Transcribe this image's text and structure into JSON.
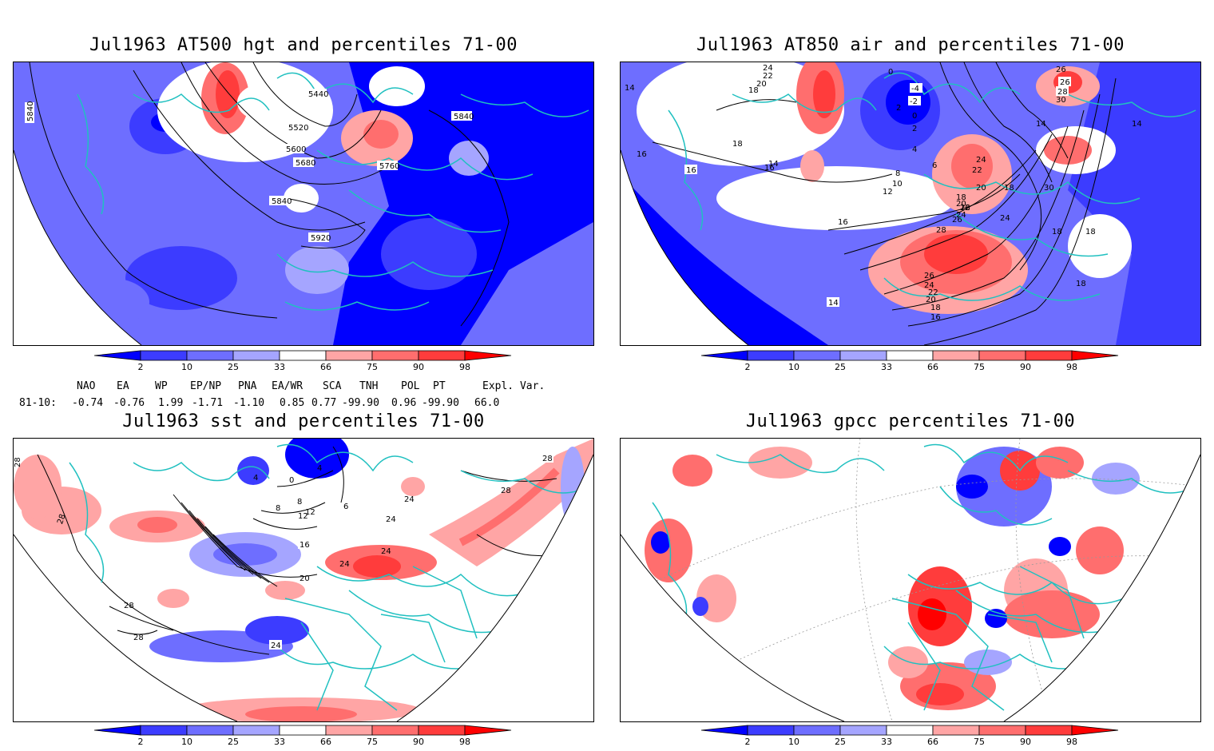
{
  "panels": [
    {
      "title": "Jul1963 AT500 hgt and percentiles 71-00",
      "contour_labels": [
        "5440",
        "5520",
        "5600",
        "5680",
        "5760",
        "5840",
        "5840",
        "5840",
        "5920"
      ]
    },
    {
      "title": "Jul1963 AT850 air and percentiles 71-00",
      "contour_labels": [
        "24",
        "22",
        "20",
        "18",
        "0",
        "-4",
        "-2",
        "2",
        "0",
        "2",
        "4",
        "6",
        "8",
        "10",
        "12",
        "14",
        "16",
        "18",
        "26",
        "28",
        "30",
        "26",
        "24",
        "22",
        "20",
        "18",
        "16",
        "14",
        "14",
        "16",
        "18",
        "16",
        "20",
        "22",
        "24",
        "26",
        "28",
        "30",
        "24",
        "26",
        "24",
        "22",
        "20",
        "18",
        "16",
        "18",
        "18",
        "14",
        "14",
        "16",
        "18"
      ]
    },
    {
      "title": "Jul1963 sst and percentiles 71-00",
      "contour_labels": [
        "28",
        "28",
        "28",
        "24",
        "20",
        "16",
        "12",
        "8",
        "4",
        "0",
        "4",
        "6",
        "8",
        "12",
        "24",
        "24",
        "24",
        "24",
        "28",
        "28",
        "28"
      ]
    },
    {
      "title": "Jul1963 gpcc percentiles 71-00",
      "contour_labels": []
    }
  ],
  "colorbar": {
    "ticks": [
      "2",
      "10",
      "25",
      "33",
      "66",
      "75",
      "90",
      "98"
    ],
    "colors": [
      "#0000ff",
      "#3c3cff",
      "#6e6eff",
      "#a5a5ff",
      "#ffffff",
      "#ffa5a5",
      "#ff6e6e",
      "#ff3c3c",
      "#ff0000"
    ]
  },
  "indices": {
    "headers": [
      "NAO",
      "EA",
      "WP",
      "EP/NP",
      "PNA",
      "EA/WR",
      "SCA",
      "TNH",
      "POL",
      "PT",
      "Expl. Var."
    ],
    "row_label": "81-10:",
    "values": [
      "-0.74",
      "-0.76",
      "1.99",
      "-1.71",
      "-1.10",
      "0.85",
      "0.77",
      "-99.90",
      "0.96",
      "-99.90",
      "66.0"
    ]
  },
  "style": {
    "land_outline": "#20c0c0",
    "contour": "#000000"
  }
}
